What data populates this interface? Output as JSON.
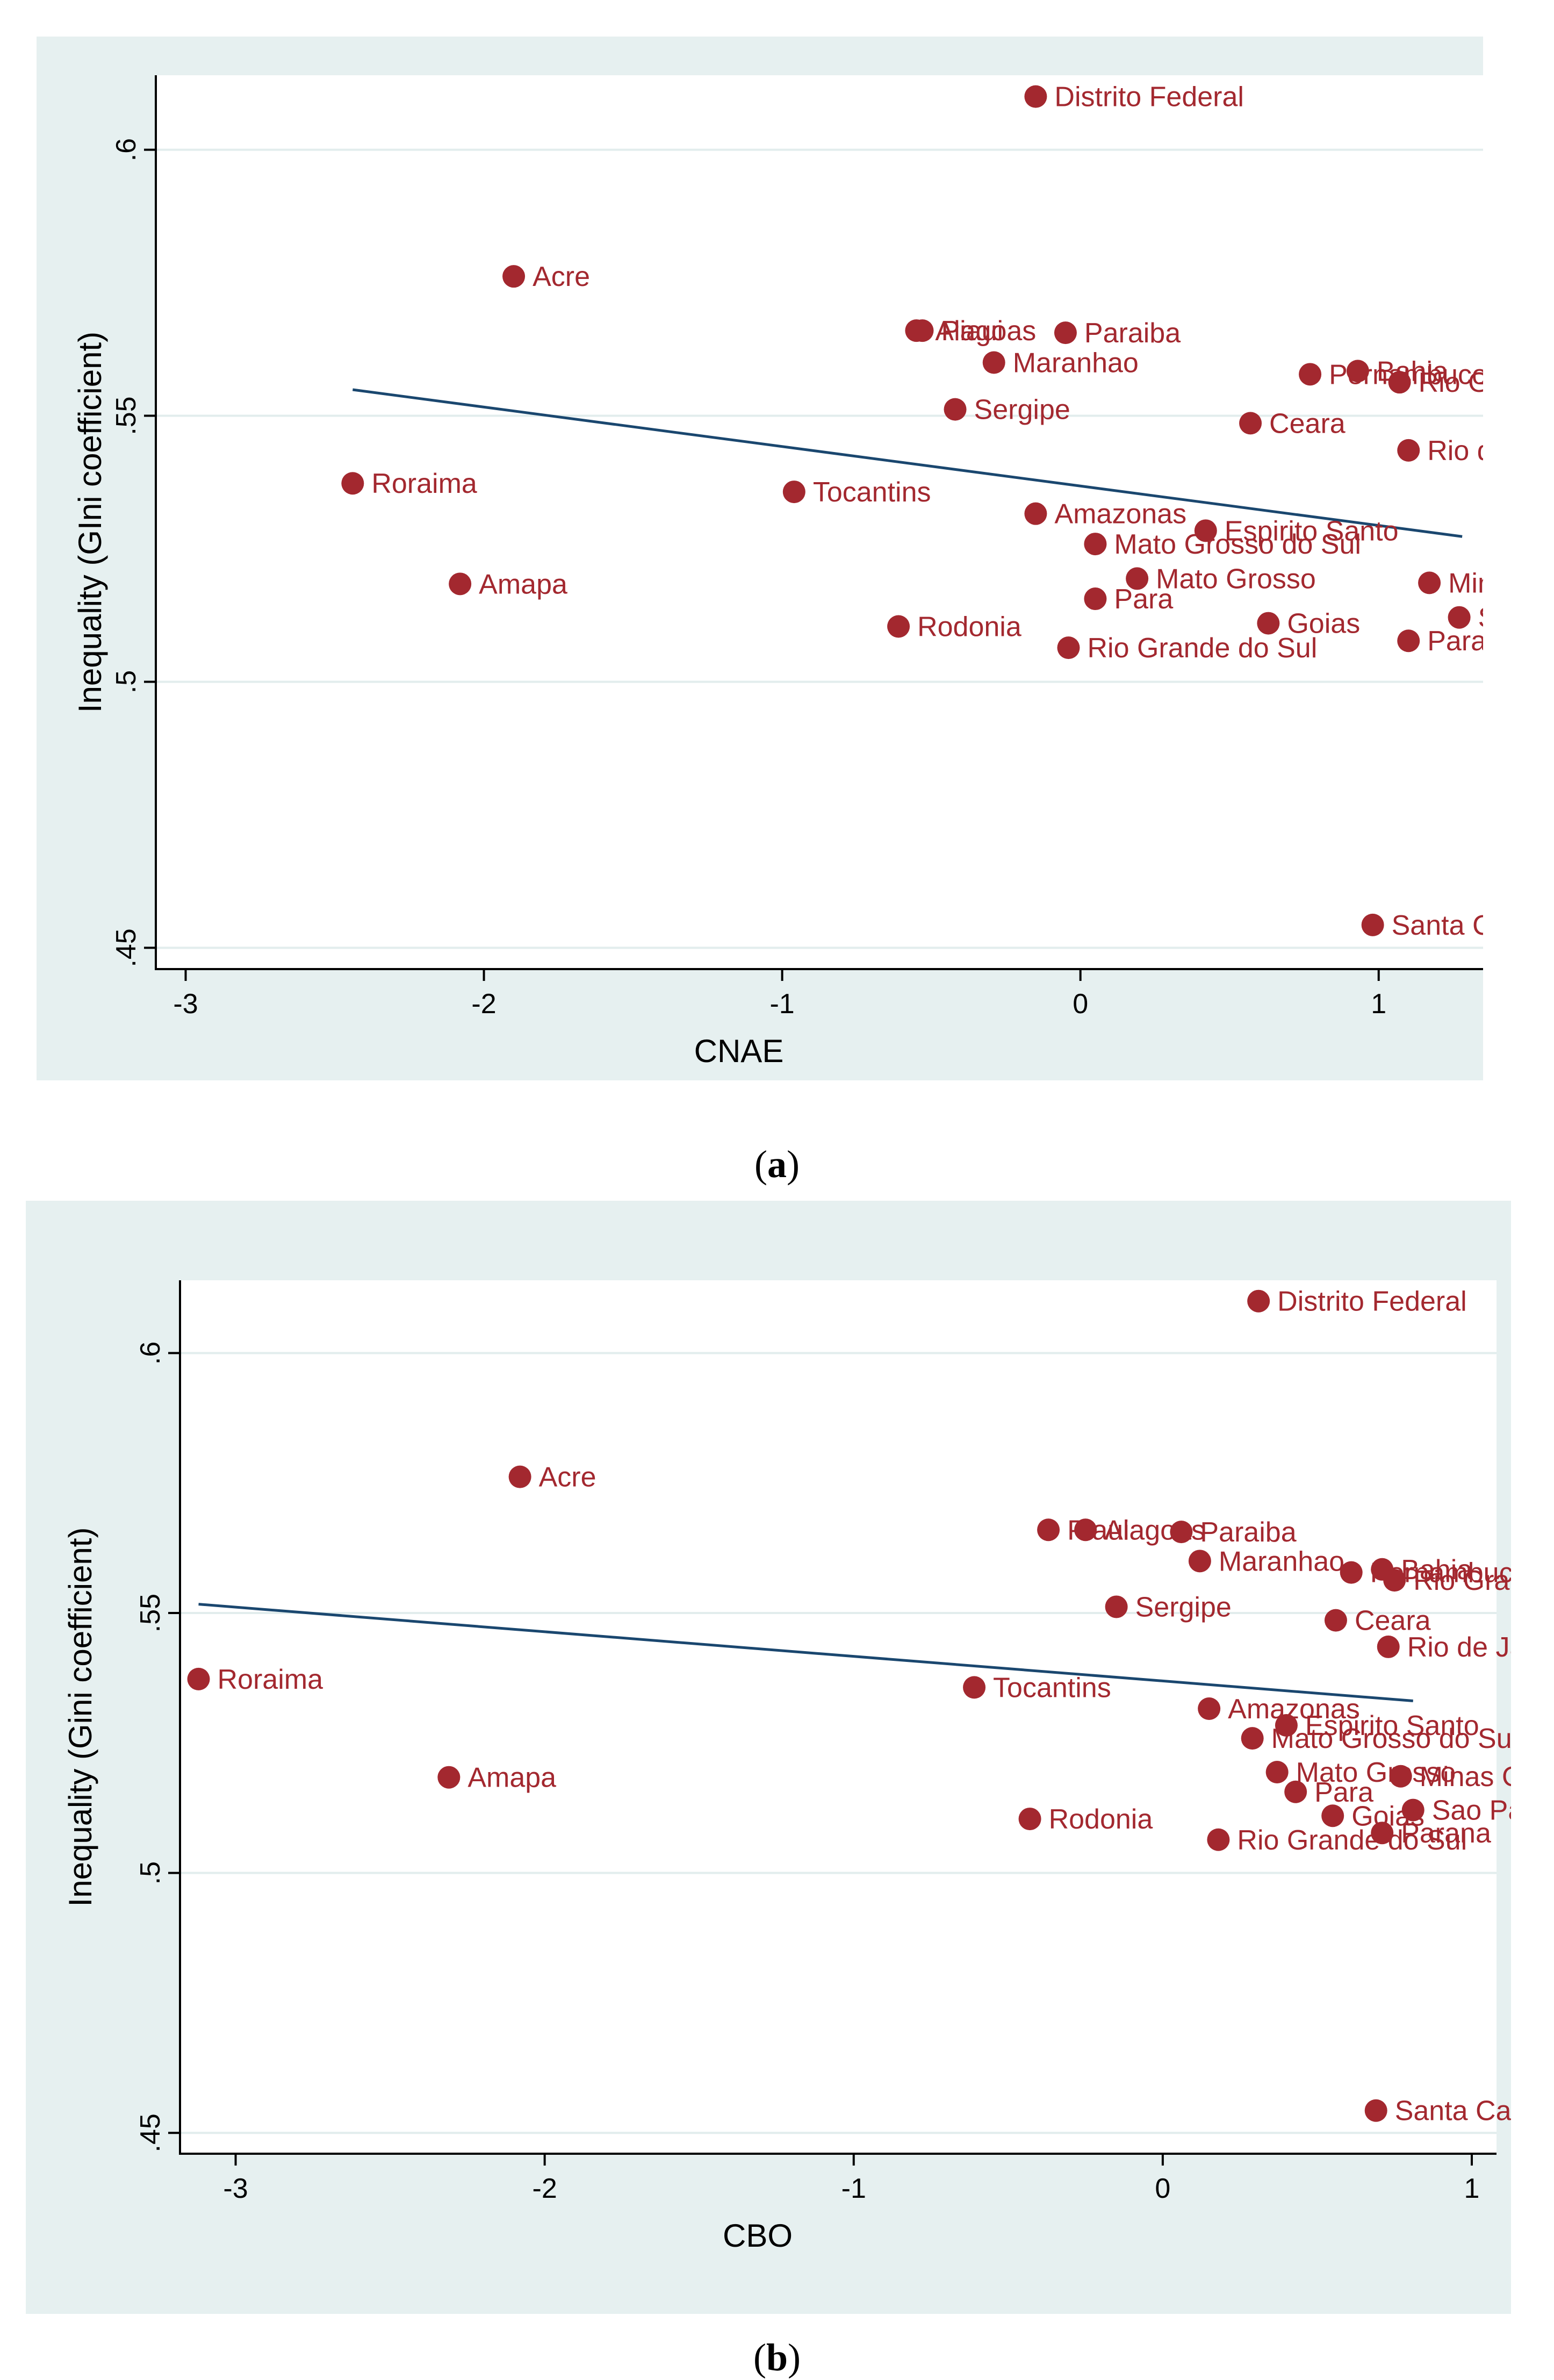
{
  "colors": {
    "panel_bg": "#e6f0f0",
    "plot_bg": "#ffffff",
    "grid": "#e2eded",
    "axis": "#000000",
    "marker": "#a3282f",
    "label": "#a3282f",
    "fit_line": "#1a476f"
  },
  "chart_data": [
    {
      "type": "scatter",
      "panel": "a",
      "caption_open": "(",
      "caption_letter": "a",
      "caption_close": ")",
      "xlabel": "CNAE",
      "ylabel": "Inequality (GIni coefficient)",
      "xlim": [
        -3.1,
        1.35
      ],
      "ylim": [
        0.446,
        0.614
      ],
      "xticks": [
        -3,
        -2,
        -1,
        0,
        1
      ],
      "xtick_labels": [
        "-3",
        "-2",
        "-1",
        "0",
        "1"
      ],
      "yticks": [
        0.45,
        0.5,
        0.55,
        0.6
      ],
      "ytick_labels": [
        ".45",
        ".5",
        ".55",
        ".6"
      ],
      "fit_line": {
        "x": [
          -2.44,
          1.28
        ],
        "y": [
          0.5549,
          0.5273
        ]
      },
      "points": [
        {
          "label": "Distrito Federal",
          "x": -0.15,
          "y": 0.61
        },
        {
          "label": "Acre",
          "x": -1.9,
          "y": 0.5762
        },
        {
          "label": "Alagoas",
          "x": -0.55,
          "y": 0.566
        },
        {
          "label": "Piaui",
          "x": -0.53,
          "y": 0.566
        },
        {
          "label": "Paraiba",
          "x": -0.05,
          "y": 0.5656
        },
        {
          "label": "Maranhao",
          "x": -0.29,
          "y": 0.56
        },
        {
          "label": "Pernambuco",
          "x": 0.77,
          "y": 0.5578
        },
        {
          "label": "Bahia",
          "x": 0.93,
          "y": 0.5584
        },
        {
          "label": "Rio Grande do Norte",
          "x": 1.07,
          "y": 0.5563
        },
        {
          "label": "Sergipe",
          "x": -0.42,
          "y": 0.5512
        },
        {
          "label": "Ceara",
          "x": 0.57,
          "y": 0.5486
        },
        {
          "label": "Rio de Janeiro",
          "x": 1.1,
          "y": 0.5435
        },
        {
          "label": "Roraima",
          "x": -2.44,
          "y": 0.5373
        },
        {
          "label": "Tocantins",
          "x": -0.96,
          "y": 0.5357
        },
        {
          "label": "Amazonas",
          "x": -0.15,
          "y": 0.5316
        },
        {
          "label": "Espirito Santo",
          "x": 0.42,
          "y": 0.5284
        },
        {
          "label": "Mato Grosso do Sul",
          "x": 0.05,
          "y": 0.5259
        },
        {
          "label": "Amapa",
          "x": -2.08,
          "y": 0.5184
        },
        {
          "label": "Mato Grosso",
          "x": 0.19,
          "y": 0.5194
        },
        {
          "label": "Minas Gerais",
          "x": 1.17,
          "y": 0.5186
        },
        {
          "label": "Para",
          "x": 0.05,
          "y": 0.5156
        },
        {
          "label": "Sao Paulo",
          "x": 1.27,
          "y": 0.5121
        },
        {
          "label": "Rodonia",
          "x": -0.61,
          "y": 0.5104
        },
        {
          "label": "Goias",
          "x": 0.63,
          "y": 0.511
        },
        {
          "label": "Parana",
          "x": 1.1,
          "y": 0.5077
        },
        {
          "label": "Rio Grande do Sul",
          "x": -0.04,
          "y": 0.5064
        },
        {
          "label": "Santa Catarina",
          "x": 0.98,
          "y": 0.4543
        }
      ]
    },
    {
      "type": "scatter",
      "panel": "b",
      "caption_open": "(",
      "caption_letter": "b",
      "caption_close": ")",
      "xlabel": "CBO",
      "ylabel": "Inequality (Gini coefficient)",
      "xlim": [
        -3.18,
        1.08
      ],
      "ylim": [
        0.446,
        0.614
      ],
      "xticks": [
        -3,
        -2,
        -1,
        0,
        1
      ],
      "xtick_labels": [
        "-3",
        "-2",
        "-1",
        "0",
        "1"
      ],
      "yticks": [
        0.45,
        0.5,
        0.55,
        0.6
      ],
      "ytick_labels": [
        ".45",
        ".5",
        ".55",
        ".6"
      ],
      "fit_line": {
        "x": [
          -3.12,
          0.81
        ],
        "y": [
          0.5517,
          0.5331
        ]
      },
      "points": [
        {
          "label": "Distrito Federal",
          "x": 0.31,
          "y": 0.61
        },
        {
          "label": "Acre",
          "x": -2.08,
          "y": 0.5762
        },
        {
          "label": "Piaui",
          "x": -0.37,
          "y": 0.566
        },
        {
          "label": "Alagoas",
          "x": -0.25,
          "y": 0.566
        },
        {
          "label": "Paraiba",
          "x": 0.06,
          "y": 0.5656
        },
        {
          "label": "Maranhao",
          "x": 0.12,
          "y": 0.56
        },
        {
          "label": "Pernambuco",
          "x": 0.61,
          "y": 0.5578
        },
        {
          "label": "Bahia",
          "x": 0.71,
          "y": 0.5584
        },
        {
          "label": "Rio Grande do Norte",
          "x": 0.75,
          "y": 0.5563
        },
        {
          "label": "Sergipe",
          "x": -0.15,
          "y": 0.5512
        },
        {
          "label": "Ceara",
          "x": 0.56,
          "y": 0.5486
        },
        {
          "label": "Rio de Janeiro",
          "x": 0.73,
          "y": 0.5435
        },
        {
          "label": "Roraima",
          "x": -3.12,
          "y": 0.5373
        },
        {
          "label": "Tocantins",
          "x": -0.61,
          "y": 0.5357
        },
        {
          "label": "Amazonas",
          "x": 0.15,
          "y": 0.5316
        },
        {
          "label": "Espirito Santo",
          "x": 0.4,
          "y": 0.5284
        },
        {
          "label": "Mato Grosso do Sul",
          "x": 0.29,
          "y": 0.5259
        },
        {
          "label": "Amapa",
          "x": -2.31,
          "y": 0.5184
        },
        {
          "label": "Mato Grosso",
          "x": 0.37,
          "y": 0.5194
        },
        {
          "label": "Minas Gerais",
          "x": 0.77,
          "y": 0.5186
        },
        {
          "label": "Para",
          "x": 0.43,
          "y": 0.5156
        },
        {
          "label": "Sao Paulo",
          "x": 0.81,
          "y": 0.5121
        },
        {
          "label": "Rodonia",
          "x": -0.43,
          "y": 0.5104
        },
        {
          "label": "Goias",
          "x": 0.55,
          "y": 0.511
        },
        {
          "label": "Parana",
          "x": 0.71,
          "y": 0.5077
        },
        {
          "label": "Rio Grande do Sul",
          "x": 0.18,
          "y": 0.5064
        },
        {
          "label": "Santa Catarina",
          "x": 0.69,
          "y": 0.4543
        }
      ]
    }
  ]
}
